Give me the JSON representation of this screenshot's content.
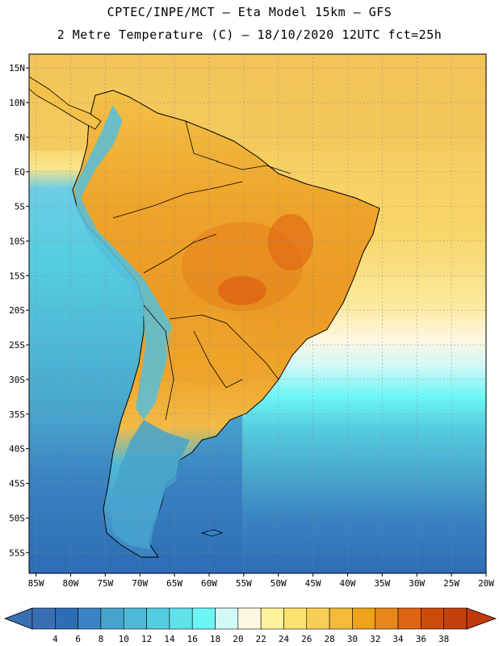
{
  "title": {
    "line1": "CPTEC/INPE/MCT –  Eta Model 15km – GFS",
    "line2": "2 Metre Temperature (C) – 18/10/2020 12UTC fct=25h"
  },
  "map": {
    "variable": "2 Metre Temperature",
    "units": "C",
    "lat_labels": [
      "15N",
      "10N",
      "5N",
      "EQ",
      "5S",
      "10S",
      "15S",
      "20S",
      "25S",
      "30S",
      "35S",
      "40S",
      "45S",
      "50S",
      "55S"
    ],
    "lat_values": [
      15,
      10,
      5,
      0,
      -5,
      -10,
      -15,
      -20,
      -25,
      -30,
      -35,
      -40,
      -45,
      -50,
      -55
    ],
    "lon_labels": [
      "85W",
      "80W",
      "75W",
      "70W",
      "65W",
      "60W",
      "55W",
      "50W",
      "45W",
      "40W",
      "35W",
      "30W",
      "25W",
      "20W"
    ],
    "lon_values": [
      -85,
      -80,
      -75,
      -70,
      -65,
      -60,
      -55,
      -50,
      -45,
      -40,
      -35,
      -30,
      -25,
      -20
    ],
    "lat_range": [
      -58,
      17
    ],
    "lon_range": [
      -86,
      -20
    ]
  },
  "colorbar": {
    "labels": [
      "4",
      "6",
      "8",
      "10",
      "12",
      "14",
      "16",
      "18",
      "20",
      "22",
      "24",
      "26",
      "28",
      "30",
      "32",
      "34",
      "36",
      "38"
    ],
    "colors": [
      "#3b6fb4",
      "#2d6db5",
      "#3a82c2",
      "#47a3cc",
      "#4fbad7",
      "#55cde0",
      "#5fe2ea",
      "#6cf6f6",
      "#d2f8f8",
      "#fdf7e2",
      "#fdf29a",
      "#fde36d",
      "#f8cf56",
      "#f3bb38",
      "#efa21a",
      "#e7861d",
      "#df6413",
      "#cd4a0a",
      "#c2410d"
    ],
    "end_left_color": "#3a6fb0",
    "end_right_color": "#c03a0c"
  }
}
